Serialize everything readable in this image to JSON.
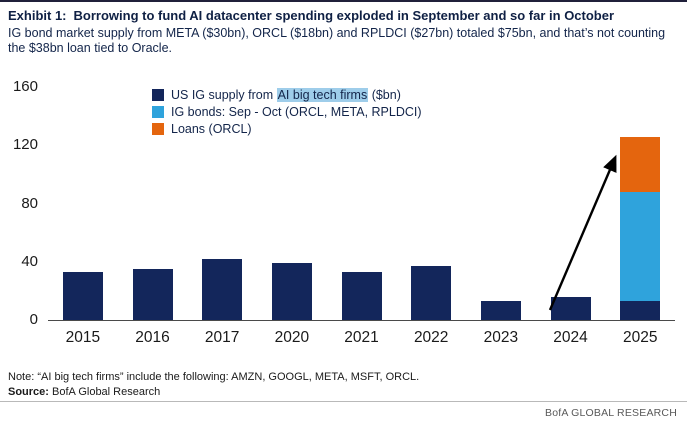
{
  "header": {
    "exhibit_label": "Exhibit 1:",
    "title": "Borrowing to fund AI datacenter spending exploded in September and so far in October",
    "subtitle": "IG bond market supply from META ($30bn), ORCL ($18bn) and RPLDCI ($27bn) totaled $75bn, and that’s not counting the $38bn loan tied to Oracle."
  },
  "legend": {
    "items": [
      {
        "prefix": "US IG supply from ",
        "highlight": "AI big tech firms",
        "suffix": " ($bn)"
      },
      {
        "label": "IG bonds: Sep - Oct (ORCL, META, RPLDCI)"
      },
      {
        "label": "Loans (ORCL)"
      }
    ]
  },
  "chart_data": {
    "type": "bar",
    "stacked": true,
    "categories": [
      "2015",
      "2016",
      "2017",
      "2020",
      "2021",
      "2022",
      "2023",
      "2024",
      "2025"
    ],
    "series": [
      {
        "name": "US IG supply from AI big tech firms ($bn)",
        "color": "#13265b",
        "values": [
          33,
          35,
          42,
          39,
          33,
          37,
          13,
          16,
          13
        ]
      },
      {
        "name": "IG bonds: Sep - Oct (ORCL, META, RPLDCI)",
        "color": "#2fa3dc",
        "values": [
          0,
          0,
          0,
          0,
          0,
          0,
          0,
          0,
          75
        ]
      },
      {
        "name": "Loans (ORCL)",
        "color": "#e4650e",
        "values": [
          0,
          0,
          0,
          0,
          0,
          0,
          0,
          0,
          38
        ]
      }
    ],
    "title": "US IG supply from AI big tech firms ($bn)",
    "xlabel": "",
    "ylabel": "",
    "ylim": [
      0,
      160
    ],
    "yticks": [
      0,
      40,
      80,
      120,
      160
    ],
    "grid": false,
    "legend_position": "top-left-inside",
    "annotation": {
      "type": "arrow",
      "from_category": "2024",
      "to_category": "2025",
      "meaning": "points to 2025 spike"
    }
  },
  "colors": {
    "navy": "#13265b",
    "light_blue": "#2fa3dc",
    "orange": "#e4650e",
    "highlight": "#9ecdea"
  },
  "footer": {
    "note": "Note: “AI big tech firms” include the following: AMZN, GOOGL, META, MSFT, ORCL.",
    "source_label": "Source:",
    "source_text": " BofA Global Research",
    "brand": "BofA GLOBAL RESEARCH"
  }
}
